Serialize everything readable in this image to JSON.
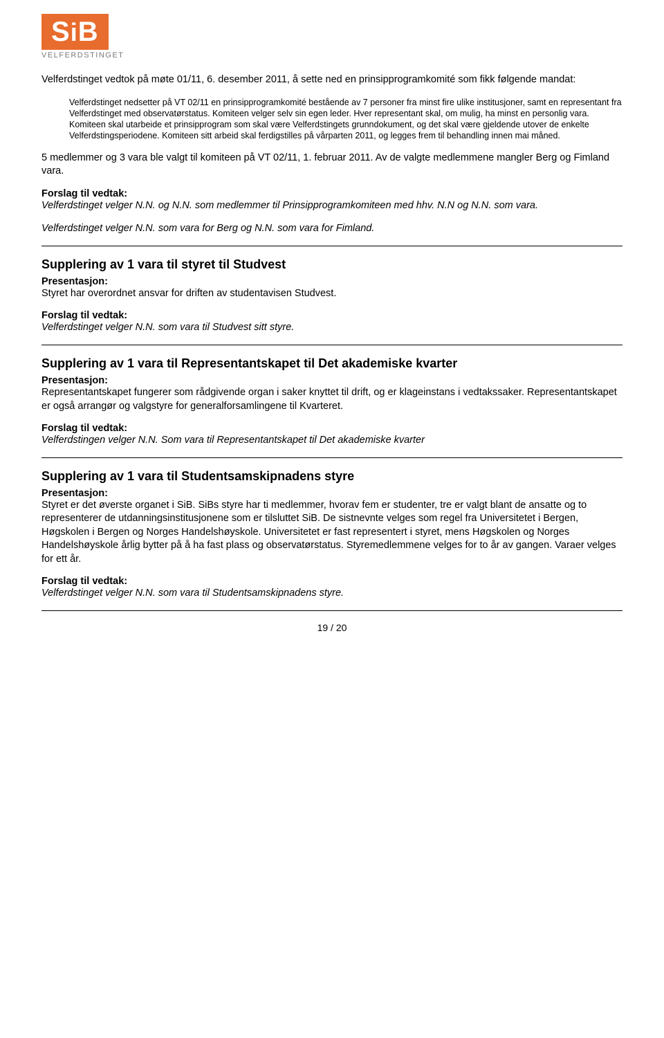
{
  "logo": {
    "text": "SiB",
    "subtitle": "VELFERDSTINGET",
    "bg_color": "#e86c2d",
    "text_color": "#ffffff",
    "subtitle_color": "#7a7a7a"
  },
  "intro": {
    "lead": "Velferdstinget vedtok på møte 01/11, 6. desember 2011, å sette ned en prinsipprogramkomité som fikk følgende mandat:",
    "mandate": "Velferdstinget nedsetter på VT 02/11 en prinsipprogramkomité bestående av 7 personer fra minst fire ulike institusjoner, samt en representant fra Velferdstinget med observatørstatus. Komiteen velger selv sin egen leder. Hver representant skal, om mulig, ha minst en personlig vara. Komiteen skal utarbeide et prinsipprogram som skal være Velferdstingets grunndokument, og det skal være gjeldende utover de enkelte Velferdstingsperiodene. Komiteen sitt arbeid skal ferdigstilles på vårparten 2011, og legges frem til behandling innen mai måned.",
    "followup": "5 medlemmer og 3 vara ble valgt til komiteen på VT 02/11, 1. februar 2011. Av de valgte medlemmene mangler Berg og Fimland vara.",
    "proposal_label": "Forslag til vedtak:",
    "proposal1": "Velferdstinget velger N.N. og N.N. som medlemmer til Prinsipprogramkomiteen med hhv. N.N og N.N. som vara.",
    "proposal2": "Velferdstinget velger N.N. som vara for Berg og N.N. som vara for Fimland."
  },
  "sections": [
    {
      "heading": "Supplering av 1 vara til styret til Studvest",
      "pres_label": "Presentasjon:",
      "pres_text": "Styret har overordnet ansvar for driften av studentavisen Studvest.",
      "proposal_label": "Forslag til vedtak:",
      "proposal_text": "Velferdstinget velger N.N. som vara til Studvest sitt styre."
    },
    {
      "heading": "Supplering av 1 vara til Representantskapet til Det akademiske kvarter",
      "pres_label": "Presentasjon:",
      "pres_text": "Representantskapet fungerer som rådgivende organ i saker knyttet til drift, og er klageinstans i vedtakssaker. Representantskapet er også arrangør og valgstyre for generalforsamlingene til Kvarteret.",
      "proposal_label": "Forslag til vedtak:",
      "proposal_text": "Velferdstingen velger N.N. Som vara til Representantskapet til Det akademiske kvarter"
    },
    {
      "heading": "Supplering av 1 vara til Studentsamskipnadens styre",
      "pres_label": "Presentasjon:",
      "pres_text": "Styret er det øverste organet i SiB. SiBs styre har ti medlemmer, hvorav fem er studenter, tre er valgt blant de ansatte og to representerer de utdanningsinstitusjonene som er tilsluttet SiB. De sistnevnte velges som regel fra Universitetet i Bergen, Høgskolen i Bergen og Norges Handelshøyskole. Universitetet er fast representert i styret, mens Høgskolen og Norges Handelshøyskole årlig bytter på å ha fast plass og observatørstatus. Styremedlemmene velges for to år av gangen. Varaer velges for ett år.",
      "proposal_label": "Forslag til vedtak:",
      "proposal_text": "Velferdstinget velger N.N. som vara til Studentsamskipnadens styre."
    }
  ],
  "page_number": "19 / 20",
  "typography": {
    "body_fontsize_pt": 11,
    "heading_fontsize_pt": 14,
    "indent_fontsize_pt": 9.5
  },
  "divider_color": "#000000"
}
